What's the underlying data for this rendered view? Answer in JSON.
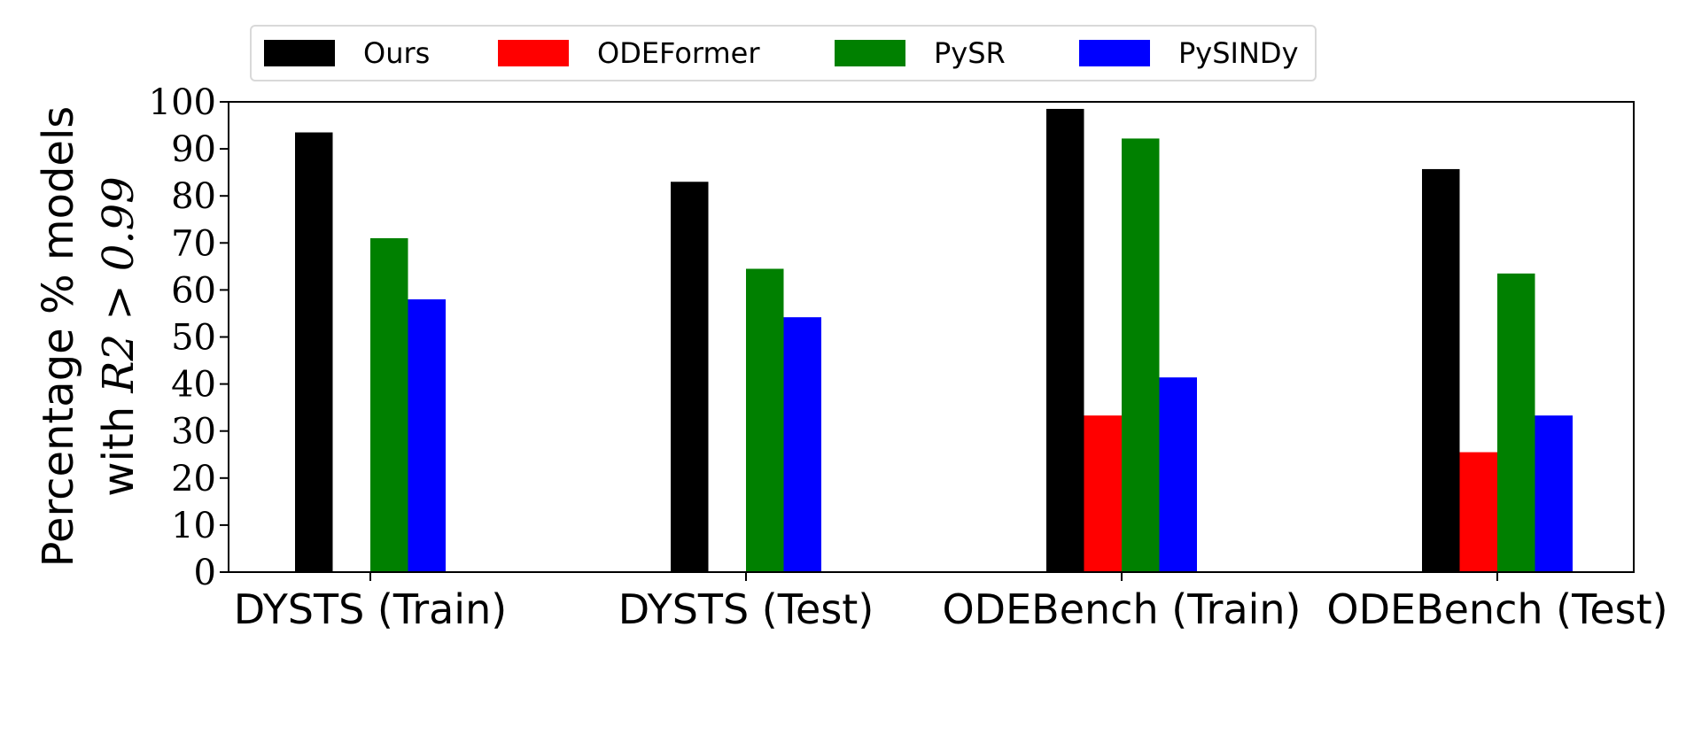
{
  "chart_data": {
    "type": "bar",
    "title": "",
    "xlabel": "",
    "ylabel_line1": "Percentage % models",
    "ylabel_line2_prefix": "with ",
    "ylabel_line2_math": "R2 > 0.99",
    "ylim": [
      0,
      100
    ],
    "yticks": [
      "0",
      "10",
      "20",
      "30",
      "40",
      "50",
      "60",
      "70",
      "80",
      "90",
      "100"
    ],
    "categories": [
      "DYSTS (Train)",
      "DYSTS (Test)",
      "ODEBench (Train)",
      "ODEBench (Test)"
    ],
    "legend_position": "top",
    "grid": false,
    "series": [
      {
        "name": "Ours",
        "color": "#000000",
        "values": [
          93.5,
          83.0,
          98.5,
          85.7
        ]
      },
      {
        "name": "ODEFormer",
        "color": "#ff0000",
        "values": [
          0,
          0,
          33.3,
          25.5
        ]
      },
      {
        "name": "PySR",
        "color": "#008000",
        "values": [
          71.0,
          64.5,
          92.2,
          63.5
        ]
      },
      {
        "name": "PySINDy",
        "color": "#0000ff",
        "values": [
          58.0,
          54.2,
          41.4,
          33.3
        ]
      }
    ]
  }
}
